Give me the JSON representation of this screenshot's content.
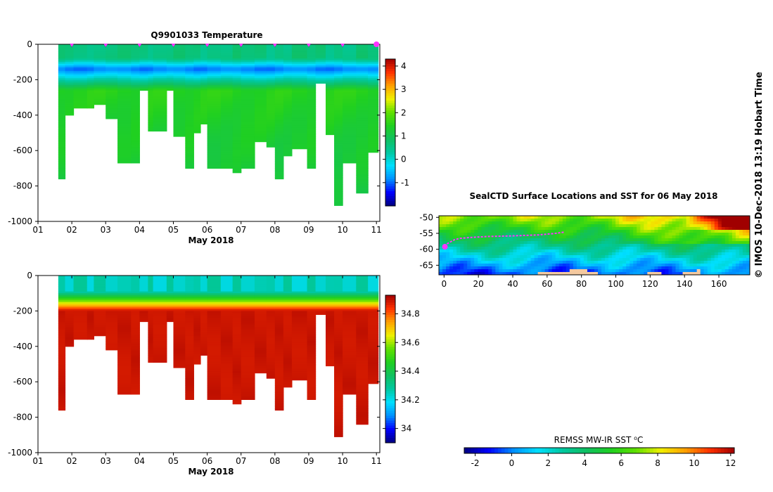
{
  "colors": {
    "axis": "#000000",
    "land": "#f4c9a0",
    "track": "#ff33ff",
    "cmap_temp": [
      "#000080",
      "#0000ff",
      "#0090ff",
      "#00e0ff",
      "#00c8a0",
      "#10c060",
      "#20d020",
      "#60e000",
      "#f0f000",
      "#ffa000",
      "#ff3000",
      "#a00000"
    ],
    "cmap_sal": [
      "#000080",
      "#0000ff",
      "#0090ff",
      "#00e0ff",
      "#00c8a0",
      "#10c060",
      "#20d020",
      "#60e000",
      "#f0f000",
      "#ffa000",
      "#ff3000",
      "#a00000"
    ]
  },
  "credit": "© IMOS 10-Dec-2018 13:19 Hobart Time",
  "chart_data": [
    {
      "id": "temperature",
      "type": "heatmap",
      "title": "Q9901033  Temperature",
      "xlabel": "May 2018",
      "ylabel": "",
      "x_tick_labels": [
        "01",
        "02",
        "03",
        "04",
        "05",
        "06",
        "07",
        "08",
        "09",
        "10",
        "11"
      ],
      "y_ticks": [
        0,
        -200,
        -400,
        -600,
        -800,
        -1000
      ],
      "xlim": [
        1,
        11.1
      ],
      "ylim": [
        -1000,
        0
      ],
      "marker_days": [
        2,
        3,
        4,
        5,
        6,
        7,
        8,
        9,
        10,
        11
      ],
      "colorbar": {
        "min": -2,
        "max": 4.3,
        "ticks": [
          4,
          3,
          2,
          1,
          0,
          -1
        ]
      },
      "profiles": {
        "start_days": [
          1.6,
          1.8,
          2.05,
          2.45,
          2.65,
          3.0,
          3.35,
          3.75,
          4.0,
          4.25,
          4.4,
          4.8,
          5.0,
          5.35,
          5.6,
          5.8,
          6.0,
          6.4,
          6.75,
          7.0,
          7.4,
          7.75,
          8.0,
          8.25,
          8.5,
          8.95,
          9.2,
          9.5,
          9.75,
          10.0,
          10.4,
          10.75
        ],
        "max_depths": [
          760,
          400,
          360,
          360,
          340,
          420,
          670,
          670,
          260,
          490,
          490,
          260,
          520,
          700,
          500,
          450,
          700,
          700,
          725,
          700,
          550,
          580,
          760,
          630,
          590,
          700,
          220,
          510,
          910,
          670,
          840,
          610
        ]
      },
      "temperature_surface_c": 0.6,
      "temperature_min_c": -1.0,
      "temperature_deep_c": 1.5
    },
    {
      "id": "salinity",
      "type": "heatmap",
      "title": "",
      "xlabel": "May 2018",
      "ylabel": "",
      "x_tick_labels": [
        "01",
        "02",
        "03",
        "04",
        "05",
        "06",
        "07",
        "08",
        "09",
        "10",
        "11"
      ],
      "y_ticks": [
        0,
        -200,
        -400,
        -600,
        -800,
        -1000
      ],
      "xlim": [
        1,
        11.1
      ],
      "ylim": [
        -1000,
        0
      ],
      "colorbar": {
        "min": 33.9,
        "max": 34.93,
        "ticks": [
          34.8,
          34.6,
          34.4,
          34.2,
          34
        ]
      },
      "salinity_surface_psu": 34.25,
      "salinity_deep_psu": 34.9
    },
    {
      "id": "sst_map",
      "type": "heatmap",
      "title": "SealCTD Surface Locations and SST for 06 May 2018",
      "xlabel": "",
      "ylabel": "",
      "x_tick_labels": [
        "0",
        "20",
        "40",
        "60",
        "80",
        "100",
        "120",
        "140",
        "160"
      ],
      "y_tick_labels": [
        "-50",
        "-55",
        "-60",
        "-65"
      ],
      "xlim": [
        -3,
        178
      ],
      "ylim": [
        -68,
        -49.5
      ],
      "track": {
        "lon": [
          0.5,
          2,
          4,
          6,
          9,
          15,
          25,
          40,
          55,
          65,
          70
        ],
        "lat": [
          -59.2,
          -58.2,
          -57.6,
          -57.0,
          -56.6,
          -56.3,
          -56.0,
          -55.8,
          -55.5,
          -55.0,
          -54.6
        ]
      },
      "colorbar": {
        "label": "REMSS MW-IR SST ⁰C",
        "min": -2.6,
        "max": 12.2,
        "ticks": [
          -2,
          0,
          2,
          4,
          6,
          8,
          10,
          12
        ]
      }
    }
  ]
}
